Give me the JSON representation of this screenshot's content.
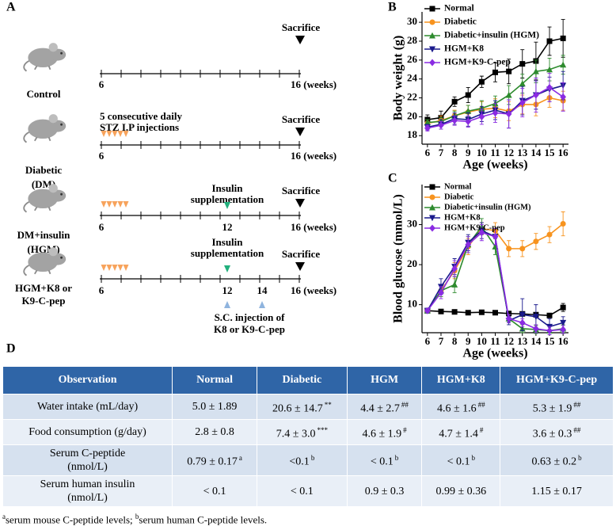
{
  "panel_a": {
    "label": "A",
    "groups": [
      {
        "mouse": [
          "Control"
        ],
        "start": "6",
        "end": "16 (weeks)",
        "sacrifice": "Sacrifice"
      },
      {
        "mouse": [
          "Diabetic",
          "(DM)"
        ],
        "stz": [
          "5 consecutive daily",
          "STZ I.P injections"
        ],
        "start": "6",
        "end": "16 (weeks)",
        "sacrifice": "Sacrifice"
      },
      {
        "mouse": [
          "DM+insulin",
          "(HGM)"
        ],
        "insulin": [
          "Insulin",
          "supplementation"
        ],
        "week12": "12",
        "start": "6",
        "end": "16 (weeks)",
        "sacrifice": "Sacrifice"
      },
      {
        "mouse": [
          "HGM+K8 or",
          "K9-C-pep"
        ],
        "insulin": [
          "Insulin",
          "supplementation"
        ],
        "week12": "12",
        "week14": "14",
        "injection": [
          "S.C. injection of",
          "K8 or K9-C-pep"
        ],
        "start": "6",
        "end": "16 (weeks)",
        "sacrifice": "Sacrifice"
      }
    ]
  },
  "chart_data": [
    {
      "type": "line",
      "panel": "B",
      "xlabel": "Age (weeks)",
      "ylabel": "Body weight (g)",
      "legend": "upper left",
      "x": [
        6,
        7,
        8,
        9,
        10,
        11,
        12,
        13,
        14,
        15,
        16
      ],
      "xlim": [
        5.6,
        16.4
      ],
      "xticks": [
        6,
        7,
        8,
        9,
        10,
        11,
        12,
        13,
        14,
        15,
        16
      ],
      "ylim": [
        17.1,
        31.1
      ],
      "yticks": [
        18,
        20,
        22,
        24,
        26,
        28,
        30
      ],
      "series": [
        {
          "name": "Normal",
          "color": "#000000",
          "marker": "square",
          "values": [
            19.7,
            19.9,
            21.6,
            22.3,
            23.7,
            24.7,
            24.8,
            25.6,
            25.9,
            28.0,
            28.3
          ],
          "errors": [
            0.5,
            0.7,
            0.5,
            0.8,
            0.6,
            1.0,
            1.3,
            1.5,
            2.0,
            1.5,
            2.0
          ]
        },
        {
          "name": "Diabetic",
          "color": "#f7931e",
          "marker": "circle",
          "values": [
            19.3,
            19.6,
            20.1,
            20.5,
            20.8,
            20.9,
            20.6,
            21.3,
            21.3,
            22.0,
            21.7
          ],
          "errors": [
            0.4,
            0.5,
            0.6,
            0.7,
            0.8,
            1.0,
            1.0,
            1.0,
            1.2,
            1.0,
            1.0
          ]
        },
        {
          "name": "Diabetic+insulin (HGM)",
          "color": "#2e8b2e",
          "marker": "triangle-up",
          "values": [
            19.4,
            19.5,
            20.1,
            20.6,
            20.9,
            21.4,
            22.3,
            23.5,
            24.8,
            25.0,
            25.5
          ],
          "errors": [
            0.3,
            0.4,
            0.5,
            0.6,
            0.8,
            0.8,
            1.0,
            1.0,
            1.2,
            1.2,
            1.0
          ]
        },
        {
          "name": "HGM+K8",
          "color": "#1a1a8c",
          "marker": "triangle-down",
          "values": [
            18.9,
            19.2,
            19.8,
            19.7,
            20.3,
            20.7,
            20.3,
            21.7,
            22.3,
            22.9,
            23.3
          ],
          "errors": [
            0.3,
            0.5,
            0.6,
            0.7,
            0.8,
            1.0,
            1.5,
            1.5,
            1.5,
            1.3,
            1.5
          ]
        },
        {
          "name": "HGM+K9-C-pep",
          "color": "#8a2be2",
          "marker": "diamond",
          "values": [
            18.8,
            19.1,
            19.6,
            19.5,
            20.0,
            20.4,
            20.3,
            21.5,
            22.3,
            23.1,
            22.1
          ],
          "errors": [
            0.3,
            0.4,
            0.5,
            0.6,
            0.8,
            1.0,
            1.5,
            1.5,
            1.8,
            1.5,
            1.5
          ]
        }
      ]
    },
    {
      "type": "line",
      "panel": "C",
      "xlabel": "Age (weeks)",
      "ylabel": "Blood glucose (mmol/L)",
      "legend": "upper left",
      "x": [
        6,
        7,
        8,
        9,
        10,
        11,
        12,
        13,
        14,
        15,
        16
      ],
      "xlim": [
        5.6,
        16.4
      ],
      "xticks": [
        6,
        7,
        8,
        9,
        10,
        11,
        12,
        13,
        14,
        15,
        16
      ],
      "ylim": [
        3,
        40
      ],
      "yticks": [
        10,
        20,
        30
      ],
      "series": [
        {
          "name": "Normal",
          "color": "#000000",
          "marker": "square",
          "values": [
            8.5,
            8.3,
            8.2,
            8.0,
            8.1,
            8.0,
            7.8,
            7.7,
            7.5,
            7.3,
            9.3
          ],
          "errors": [
            0.3,
            0.3,
            0.3,
            0.3,
            0.3,
            0.3,
            0.3,
            0.5,
            0.5,
            0.5,
            1.0
          ]
        },
        {
          "name": "Diabetic",
          "color": "#f7931e",
          "marker": "circle",
          "values": [
            8.5,
            13.5,
            18.5,
            24.5,
            29.0,
            28.5,
            24.0,
            24.0,
            25.8,
            27.5,
            30.2
          ],
          "errors": [
            0.5,
            1.5,
            2,
            2,
            1.5,
            2,
            2,
            2,
            2,
            2,
            3
          ]
        },
        {
          "name": "Diabetic+insulin (HGM)",
          "color": "#2e8b2e",
          "marker": "triangle-up",
          "values": [
            8.5,
            13.5,
            15.0,
            25.0,
            29.5,
            24.5,
            6.5,
            4.0,
            3.8,
            3.5,
            4.0
          ],
          "errors": [
            0.5,
            1.5,
            2,
            2,
            2,
            2,
            1,
            1,
            1,
            1,
            1
          ]
        },
        {
          "name": "HGM+K8",
          "color": "#1a1a8c",
          "marker": "triangle-down",
          "values": [
            8.5,
            14.5,
            19.5,
            25.5,
            28.5,
            27.0,
            6.0,
            7.5,
            7.0,
            4.5,
            5.5
          ],
          "errors": [
            0.5,
            2,
            2,
            2,
            2,
            2,
            1,
            4,
            3,
            2,
            1.5
          ]
        },
        {
          "name": "HGM+K9-C-pep",
          "color": "#8a2be2",
          "marker": "diamond",
          "values": [
            8.5,
            13.0,
            19.0,
            25.0,
            28.0,
            27.0,
            6.5,
            5.5,
            4.0,
            3.5,
            3.8
          ],
          "errors": [
            0.5,
            1.5,
            2,
            2,
            2,
            2,
            1,
            1,
            1,
            1,
            1
          ]
        }
      ]
    }
  ],
  "table": {
    "label": "D",
    "header": [
      "Observation",
      "Normal",
      "Diabetic",
      "HGM",
      "HGM+K8",
      "HGM+K9-C-pep"
    ],
    "rows": [
      [
        [
          "Water intake (mL/day)"
        ],
        "5.0 ± 1.89",
        {
          "text": "20.6 ± 14.7",
          "sup": "**"
        },
        {
          "text": "4.4 ± 2.7",
          "sup": "##"
        },
        {
          "text": "4.6 ± 1.6",
          "sup": "##"
        },
        {
          "text": "5.3 ± 1.9",
          "sup": "##"
        }
      ],
      [
        [
          "Food consumption (g/day)"
        ],
        "2.8 ± 0.8",
        {
          "text": "7.4 ± 3.0",
          "sup": "***"
        },
        {
          "text": "4.6 ± 1.9",
          "sup": "#"
        },
        {
          "text": "4.7 ± 1.4",
          "sup": "#"
        },
        {
          "text": "3.6 ± 0.3",
          "sup": "##"
        }
      ],
      [
        [
          "Serum C-peptide",
          "(nmol/L)"
        ],
        {
          "text": "0.79 ± 0.17",
          "sup": "a"
        },
        {
          "text": "<0.1",
          "sup": "b"
        },
        {
          "text": "< 0.1",
          "sup": "b"
        },
        {
          "text": "< 0.1",
          "sup": "b"
        },
        {
          "text": "0.63 ± 0.2",
          "sup": "b"
        }
      ],
      [
        [
          "Serum human insulin",
          "(nmol/L)"
        ],
        "< 0.1",
        "< 0.1",
        "0.9 ± 0.3",
        "0.99 ± 0.36",
        "1.15 ± 0.17"
      ]
    ],
    "footnotes": [
      {
        "sup": "a",
        "text": "serum mouse C-peptide levels; "
      },
      {
        "sup": "b",
        "text": "serum human C-peptide levels."
      }
    ]
  }
}
